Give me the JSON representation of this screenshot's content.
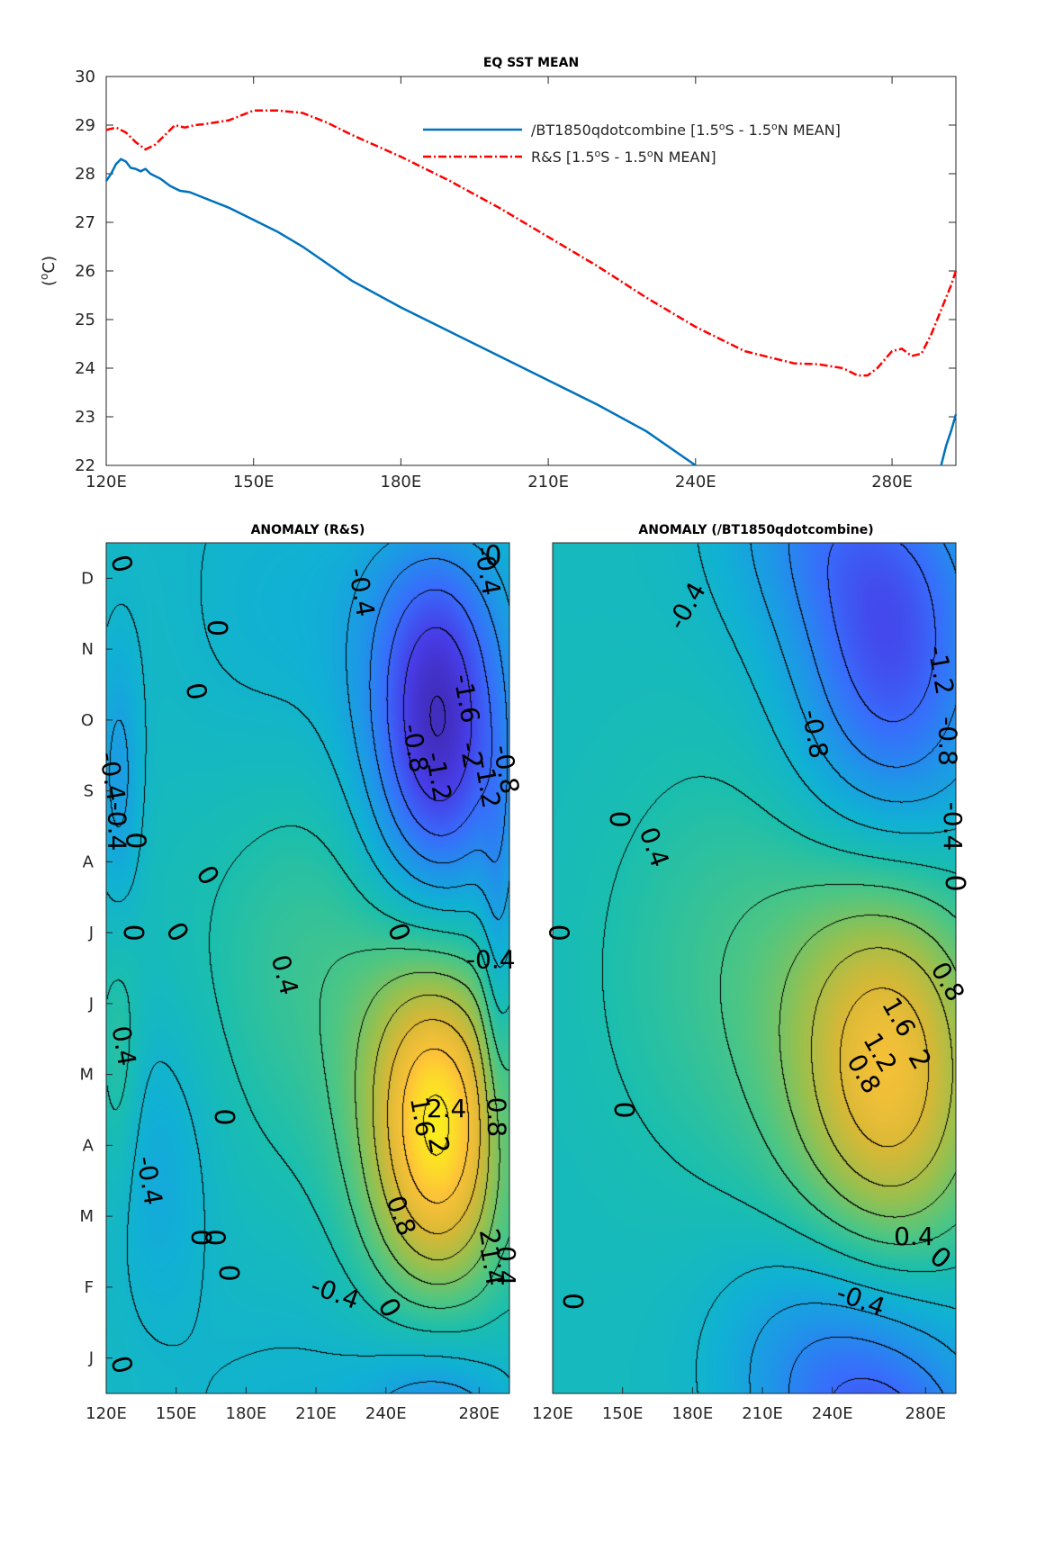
{
  "chart_data": [
    {
      "type": "line",
      "title": "EQ SST MEAN",
      "xlabel": "",
      "ylabel": "(°C)",
      "xlim": [
        120,
        293
      ],
      "ylim": [
        22,
        30
      ],
      "xticks": [
        {
          "value": 120,
          "label": "120E"
        },
        {
          "value": 150,
          "label": "150E"
        },
        {
          "value": 180,
          "label": "180E"
        },
        {
          "value": 210,
          "label": "210E"
        },
        {
          "value": 240,
          "label": "240E"
        },
        {
          "value": 280,
          "label": "280E"
        }
      ],
      "yticks": [
        {
          "value": 22,
          "label": "22"
        },
        {
          "value": 23,
          "label": "23"
        },
        {
          "value": 24,
          "label": "24"
        },
        {
          "value": 25,
          "label": "25"
        },
        {
          "value": 26,
          "label": "26"
        },
        {
          "value": 27,
          "label": "27"
        },
        {
          "value": 28,
          "label": "28"
        },
        {
          "value": 29,
          "label": "29"
        },
        {
          "value": 30,
          "label": "30"
        }
      ],
      "legend": "top-right",
      "series": [
        {
          "name_parts": [
            "/BT1850qdotcombine [1.5",
            "o",
            "S - 1.5",
            "o",
            "N MEAN]"
          ],
          "color": "#0072BD",
          "style": "solid",
          "x": [
            120,
            121,
            122,
            123,
            124,
            125,
            126,
            127,
            128,
            129,
            130,
            131,
            133,
            135,
            137,
            140,
            145,
            150,
            155,
            160,
            165,
            170,
            180,
            190,
            200,
            210,
            220,
            230,
            240
          ],
          "y": [
            27.85,
            28.0,
            28.2,
            28.3,
            28.25,
            28.12,
            28.1,
            28.05,
            28.1,
            28.0,
            27.95,
            27.9,
            27.75,
            27.65,
            27.62,
            27.5,
            27.3,
            27.05,
            26.8,
            26.5,
            26.15,
            25.8,
            25.25,
            24.75,
            24.25,
            23.75,
            23.25,
            22.7,
            22.0
          ],
          "x2": [
            290,
            291,
            292,
            293
          ],
          "y2": [
            22.0,
            22.4,
            22.7,
            23.05
          ]
        },
        {
          "name_parts": [
            "R&S [1.5",
            "o",
            "S - 1.5",
            "o",
            "N MEAN]"
          ],
          "color": "#FF0000",
          "style": "dashdot",
          "x": [
            120,
            122,
            124,
            126,
            128,
            130,
            132,
            134,
            136,
            138,
            140,
            145,
            150,
            155,
            160,
            165,
            170,
            180,
            190,
            200,
            210,
            220,
            230,
            240,
            250,
            260,
            265,
            270,
            273,
            275,
            277,
            280,
            282,
            284,
            286,
            288,
            290,
            292,
            293
          ],
          "y": [
            28.9,
            28.95,
            28.85,
            28.65,
            28.5,
            28.6,
            28.8,
            29.0,
            28.95,
            29.0,
            29.02,
            29.1,
            29.3,
            29.3,
            29.25,
            29.05,
            28.8,
            28.35,
            27.85,
            27.3,
            26.7,
            26.1,
            25.45,
            24.85,
            24.35,
            24.1,
            24.08,
            24.0,
            23.85,
            23.85,
            24.0,
            24.35,
            24.4,
            24.25,
            24.3,
            24.7,
            25.2,
            25.7,
            26.0
          ]
        }
      ]
    },
    {
      "type": "heatmap",
      "title": "ANOMALY (R&S)",
      "xlabel": "",
      "ylabel": "",
      "xlim": [
        120,
        293
      ],
      "xticks": [
        {
          "value": 120,
          "label": "120E"
        },
        {
          "value": 150,
          "label": "150E"
        },
        {
          "value": 180,
          "label": "180E"
        },
        {
          "value": 210,
          "label": "210E"
        },
        {
          "value": 240,
          "label": "240E"
        },
        {
          "value": 280,
          "label": "280E"
        }
      ],
      "month_labels": [
        "J",
        "F",
        "M",
        "A",
        "M",
        "J",
        "J",
        "A",
        "S",
        "O",
        "N",
        "D"
      ],
      "color_range": [
        -2.4,
        2.8
      ],
      "components": [
        {
          "x": 262,
          "m": 3.8,
          "sx": 22,
          "sm": 2.0,
          "amp": 2.7
        },
        {
          "x": 262,
          "m": 9.3,
          "sx": 22,
          "sm": 2.3,
          "amp": -2.3
        },
        {
          "x": 215,
          "m": 6.2,
          "sx": 40,
          "sm": 2.2,
          "amp": 0.55
        },
        {
          "x": 125,
          "m": 8.6,
          "sx": 7,
          "sm": 1.4,
          "amp": -0.7
        },
        {
          "x": 125,
          "m": 4.5,
          "sx": 7,
          "sm": 1.5,
          "amp": 0.5
        },
        {
          "x": 140,
          "m": 3.2,
          "sx": 18,
          "sm": 1.5,
          "amp": -0.5
        },
        {
          "x": 200,
          "m": 10.8,
          "sx": 40,
          "sm": 2.0,
          "amp": -0.35
        },
        {
          "x": 288,
          "m": 6.0,
          "sx": 5,
          "sm": 2.0,
          "amp": -0.6
        }
      ],
      "contour_labels": [
        {
          "text": "0",
          "x": 126,
          "m": 11.7,
          "rot": 75
        },
        {
          "text": "-0.4",
          "x": 229,
          "m": 11.3,
          "rot": 80
        },
        {
          "text": "0",
          "x": 167,
          "m": 10.8,
          "rot": 90
        },
        {
          "text": "-0.4",
          "x": 283,
          "m": 11.6,
          "rot": 80
        },
        {
          "text": "0",
          "x": 286,
          "m": 11.8,
          "rot": 0
        },
        {
          "text": "0",
          "x": 158,
          "m": 9.9,
          "rot": 80
        },
        {
          "text": "-0.8",
          "x": 252,
          "m": 9.1,
          "rot": 80
        },
        {
          "text": "-1.2",
          "x": 262,
          "m": 8.7,
          "rot": 80
        },
        {
          "text": "-1.6",
          "x": 274,
          "m": 9.8,
          "rot": 80
        },
        {
          "text": "-2",
          "x": 276,
          "m": 9.0,
          "rot": 80
        },
        {
          "text": "-1.2",
          "x": 283,
          "m": 8.6,
          "rot": 80
        },
        {
          "text": "-0.8",
          "x": 291,
          "m": 8.8,
          "rot": 80
        },
        {
          "text": "-0.4",
          "x": 122,
          "m": 8.7,
          "rot": 80
        },
        {
          "text": "-0.4",
          "x": 124,
          "m": 8.0,
          "rot": 90
        },
        {
          "text": "0",
          "x": 132,
          "m": 7.8,
          "rot": 90
        },
        {
          "text": "0",
          "x": 163,
          "m": 7.3,
          "rot": 60
        },
        {
          "text": "0",
          "x": 131,
          "m": 6.5,
          "rot": 90
        },
        {
          "text": "0",
          "x": 150,
          "m": 6.5,
          "rot": 60
        },
        {
          "text": "0",
          "x": 245,
          "m": 6.5,
          "rot": 70
        },
        {
          "text": "-0.4",
          "x": 285,
          "m": 6.1,
          "rot": 0
        },
        {
          "text": "0.4",
          "x": 196,
          "m": 5.9,
          "rot": 75
        },
        {
          "text": "0.4",
          "x": 127,
          "m": 4.9,
          "rot": 80
        },
        {
          "text": "0",
          "x": 170,
          "m": 3.9,
          "rot": 90
        },
        {
          "text": "1.6",
          "x": 255,
          "m": 3.9,
          "rot": 80
        },
        {
          "text": "2.4",
          "x": 266,
          "m": 4.0,
          "rot": 0
        },
        {
          "text": "2",
          "x": 262,
          "m": 3.5,
          "rot": 80
        },
        {
          "text": "0.8",
          "x": 287,
          "m": 3.9,
          "rot": 90
        },
        {
          "text": "-0.4",
          "x": 138,
          "m": 3.0,
          "rot": 80
        },
        {
          "text": "0",
          "x": 166,
          "m": 2.2,
          "rot": 90
        },
        {
          "text": "0",
          "x": 160,
          "m": 2.2,
          "rot": 90
        },
        {
          "text": "0.8",
          "x": 246,
          "m": 2.5,
          "rot": 70
        },
        {
          "text": "2",
          "x": 284,
          "m": 2.2,
          "rot": 80
        },
        {
          "text": "1.4",
          "x": 285,
          "m": 1.8,
          "rot": 80
        },
        {
          "text": "0.4",
          "x": 291,
          "m": 1.8,
          "rot": 90
        },
        {
          "text": "0",
          "x": 172,
          "m": 1.7,
          "rot": 90
        },
        {
          "text": "-0.4",
          "x": 218,
          "m": 1.4,
          "rot": 20
        },
        {
          "text": "0",
          "x": 241,
          "m": 1.2,
          "rot": 60
        },
        {
          "text": "0",
          "x": 126,
          "m": 0.4,
          "rot": 75
        }
      ]
    },
    {
      "type": "heatmap",
      "title": "ANOMALY (/BT1850qdotcombine)",
      "xlabel": "",
      "ylabel": "",
      "xlim": [
        120,
        293
      ],
      "xticks": [
        {
          "value": 120,
          "label": "120E"
        },
        {
          "value": 150,
          "label": "150E"
        },
        {
          "value": 180,
          "label": "180E"
        },
        {
          "value": 210,
          "label": "210E"
        },
        {
          "value": 240,
          "label": "240E"
        },
        {
          "value": 280,
          "label": "280E"
        }
      ],
      "color_range": [
        -2.4,
        2.8
      ],
      "components": [
        {
          "x": 265,
          "m": 4.6,
          "sx": 30,
          "sm": 2.3,
          "amp": 2.05
        },
        {
          "x": 265,
          "m": 10.0,
          "sx": 30,
          "sm": 2.2,
          "amp": -1.65
        },
        {
          "x": 205,
          "m": 6.0,
          "sx": 45,
          "sm": 2.2,
          "amp": 0.55
        },
        {
          "x": 230,
          "m": 0.6,
          "sx": 30,
          "sm": 1.2,
          "amp": -0.6
        },
        {
          "x": 260,
          "m": 12.2,
          "sx": 40,
          "sm": 1.5,
          "amp": -0.4
        }
      ],
      "contour_labels": [
        {
          "text": "-0.4",
          "x": 178,
          "m": 11.1,
          "rot": -60
        },
        {
          "text": "-1.2",
          "x": 286,
          "m": 10.2,
          "rot": 80
        },
        {
          "text": "-0.8",
          "x": 232,
          "m": 9.3,
          "rot": 80
        },
        {
          "text": "-0.8",
          "x": 289,
          "m": 9.2,
          "rot": 90
        },
        {
          "text": "-0.4",
          "x": 291,
          "m": 8.0,
          "rot": 90
        },
        {
          "text": "0",
          "x": 148,
          "m": 8.1,
          "rot": 90
        },
        {
          "text": "0.4",
          "x": 163,
          "m": 7.7,
          "rot": 70
        },
        {
          "text": "0",
          "x": 292,
          "m": 7.2,
          "rot": 90
        },
        {
          "text": "0",
          "x": 122,
          "m": 6.5,
          "rot": 90
        },
        {
          "text": "0.8",
          "x": 289,
          "m": 5.8,
          "rot": 60
        },
        {
          "text": "1.6",
          "x": 268,
          "m": 5.3,
          "rot": 60
        },
        {
          "text": "1.2",
          "x": 260,
          "m": 4.8,
          "rot": 60
        },
        {
          "text": "0.8",
          "x": 253,
          "m": 4.5,
          "rot": 60
        },
        {
          "text": "2",
          "x": 277,
          "m": 4.7,
          "rot": 60
        },
        {
          "text": "0",
          "x": 150,
          "m": 4.0,
          "rot": 90
        },
        {
          "text": "0.4",
          "x": 275,
          "m": 2.2,
          "rot": 0
        },
        {
          "text": "0",
          "x": 286,
          "m": 1.9,
          "rot": 40
        },
        {
          "text": "-0.4",
          "x": 252,
          "m": 1.3,
          "rot": 20
        },
        {
          "text": "0",
          "x": 128,
          "m": 1.3,
          "rot": 90
        }
      ]
    }
  ]
}
